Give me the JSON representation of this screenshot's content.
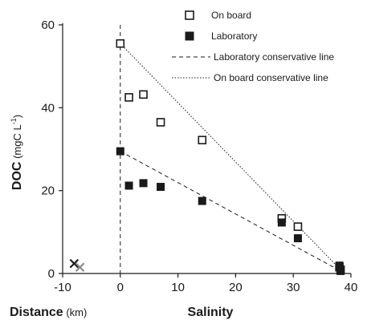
{
  "chart_data": {
    "type": "scatter",
    "xlabel": "Salinity",
    "xlabel_left": {
      "bold": "Distance",
      "unit": " (km)"
    },
    "ylabel": {
      "bold": "DOC",
      "unit": " (mgC L",
      "unit_sup": "-1",
      "unit_end": ")"
    },
    "xlim": [
      -10,
      40
    ],
    "ylim": [
      0,
      60
    ],
    "xticks": [
      "-10",
      "0",
      "10",
      "20",
      "30",
      "40"
    ],
    "yticks": [
      "0",
      "20",
      "40",
      "60"
    ],
    "xtick_values": [
      -10,
      0,
      10,
      20,
      30,
      40
    ],
    "ytick_values": [
      0,
      20,
      40,
      60
    ],
    "grid": false,
    "legend_position": "top-right",
    "series": [
      {
        "name": "On board",
        "marker": "open-square",
        "color": "#1a1a1a",
        "points": [
          [
            0,
            55.5
          ],
          [
            1.5,
            42.5
          ],
          [
            4,
            43.2
          ],
          [
            7,
            36.5
          ],
          [
            14.2,
            32.2
          ],
          [
            28,
            13.3
          ],
          [
            30.8,
            11.3
          ],
          [
            38,
            1.5
          ],
          [
            38.2,
            0.9
          ]
        ]
      },
      {
        "name": "Laboratory",
        "marker": "filled-square",
        "color": "#1a1a1a",
        "points": [
          [
            0,
            29.5
          ],
          [
            1.5,
            21.2
          ],
          [
            4,
            21.8
          ],
          [
            7,
            20.9
          ],
          [
            14.2,
            17.5
          ],
          [
            28,
            12.3
          ],
          [
            30.8,
            8.5
          ],
          [
            38,
            1.9
          ],
          [
            38.2,
            0.6
          ]
        ]
      },
      {
        "name": "Laboratory conservative line",
        "type": "line",
        "style": "dashed",
        "points": [
          [
            0,
            29.5
          ],
          [
            38.2,
            0.6
          ]
        ]
      },
      {
        "name": "On board conservative line",
        "type": "line",
        "style": "dotted",
        "points": [
          [
            0,
            55.5
          ],
          [
            38.2,
            0.9
          ]
        ]
      }
    ],
    "reference_line": {
      "style": "dashed",
      "x": 0
    },
    "distance_markers": [
      {
        "marker": "x",
        "color": "#1a1a1a",
        "x": -8,
        "y": 2.4
      },
      {
        "marker": "x",
        "color": "#8a8a8a",
        "x": -7,
        "y": 1.5
      }
    ]
  }
}
